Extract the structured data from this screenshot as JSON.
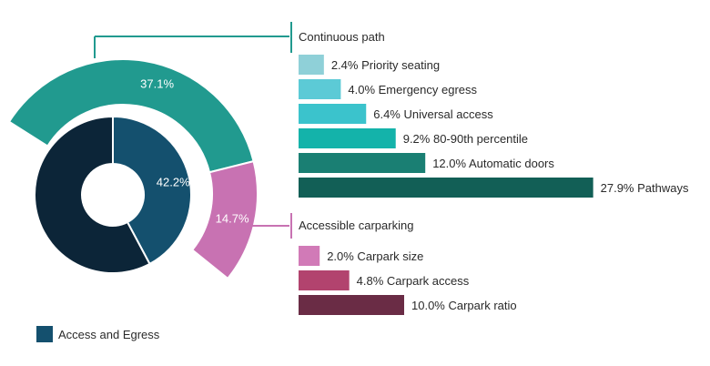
{
  "chart_data": {
    "type": "donut-with-bars",
    "inner_ring": {
      "segments": [
        {
          "name": "Access and Egress",
          "value": 42.2,
          "label": "42.2%",
          "color": "#14506e"
        },
        {
          "name": "",
          "value": 57.8,
          "label": "",
          "color": "#0c2538"
        }
      ]
    },
    "outer_ring": {
      "segments": [
        {
          "name": "Continuous path",
          "value": 37.1,
          "label": "37.1%",
          "color": "#219a8f"
        },
        {
          "name": "Accessible carparking",
          "value": 14.7,
          "label": "14.7%",
          "color": "#c872b2"
        }
      ]
    },
    "groups": [
      {
        "title": "Continuous path",
        "line_color": "#219a8f",
        "bars": [
          {
            "value": 2.4,
            "label": "2.4% Priority seating",
            "color": "#8fd0d8"
          },
          {
            "value": 4.0,
            "label": "4.0% Emergency egress",
            "color": "#5ccad6"
          },
          {
            "value": 6.4,
            "label": "6.4% Universal access",
            "color": "#3bc3cc"
          },
          {
            "value": 9.2,
            "label": "9.2% 80-90th percentile",
            "color": "#14b3aa"
          },
          {
            "value": 12.0,
            "label": "12.0% Automatic doors",
            "color": "#1a7f73"
          },
          {
            "value": 27.9,
            "label": "27.9% Pathways",
            "color": "#125f56"
          }
        ]
      },
      {
        "title": "Accessible carparking",
        "line_color": "#c872b2",
        "bars": [
          {
            "value": 2.0,
            "label": "2.0% Carpark size",
            "color": "#d17ab7"
          },
          {
            "value": 4.8,
            "label": "4.8% Carpark access",
            "color": "#b2436e"
          },
          {
            "value": 10.0,
            "label": "10.0% Carpark ratio",
            "color": "#6a2c45"
          }
        ]
      }
    ],
    "legend": [
      {
        "label": "Access and Egress",
        "color": "#14506e"
      }
    ]
  }
}
